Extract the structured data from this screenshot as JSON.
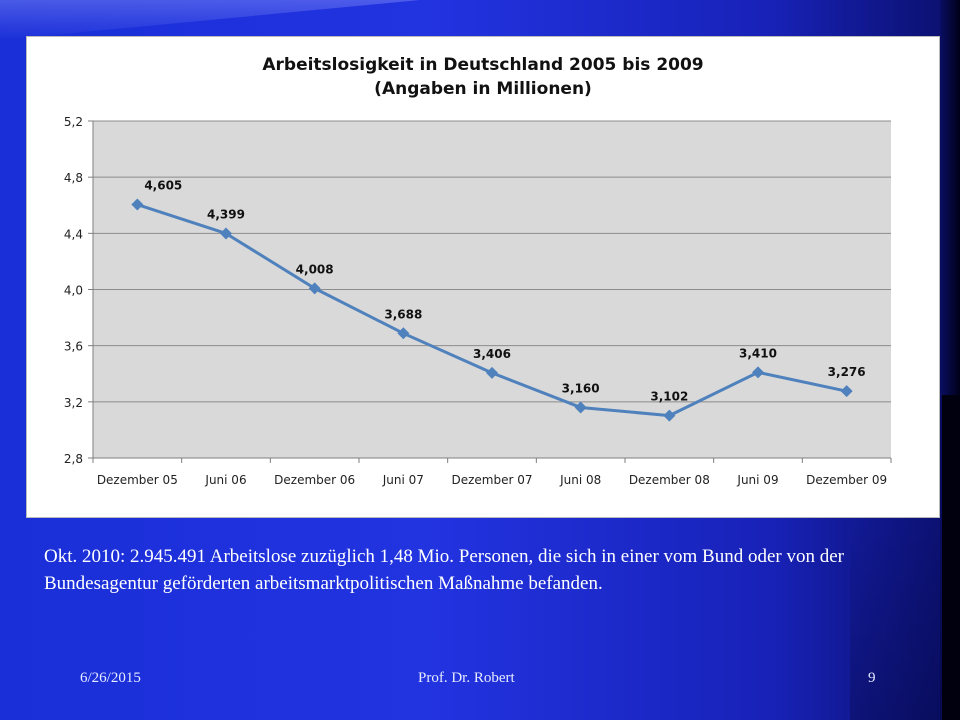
{
  "slide": {
    "caption": "Okt. 2010: 2.945.491 Arbeitslose zuzüglich 1,48 Mio. Personen, die sich in einer vom Bund oder von der Bundesagentur geförderten arbeitsmarktpolitischen Maßnahme befanden.",
    "footer_date": "6/26/2015",
    "footer_author": "Prof. Dr. Robert",
    "page_number": "9"
  },
  "chart_data": {
    "type": "line",
    "title": "Arbeitslosigkeit in Deutschland 2005 bis 2009",
    "subtitle": "(Angaben in Millionen)",
    "categories": [
      "Dezember 05",
      "Juni 06",
      "Dezember 06",
      "Juni 07",
      "Dezember 07",
      "Juni 08",
      "Dezember 08",
      "Juni 09",
      "Dezember 09"
    ],
    "series": [
      {
        "values": [
          4.605,
          4.399,
          4.008,
          3.688,
          3.406,
          3.16,
          3.102,
          3.41,
          3.276
        ],
        "labels": [
          "4,605",
          "4,399",
          "4,008",
          "3,688",
          "3,406",
          "3,160",
          "3,102",
          "3,410",
          "3,276"
        ],
        "color": "#4f81bd"
      }
    ],
    "yticks": [
      "2,8",
      "3,2",
      "3,6",
      "4,0",
      "4,4",
      "4,8",
      "5,2"
    ],
    "ylim": [
      2.8,
      5.2
    ],
    "xlabel": "",
    "ylabel": "",
    "grid": true,
    "plot_background": "#d9d9d9"
  }
}
